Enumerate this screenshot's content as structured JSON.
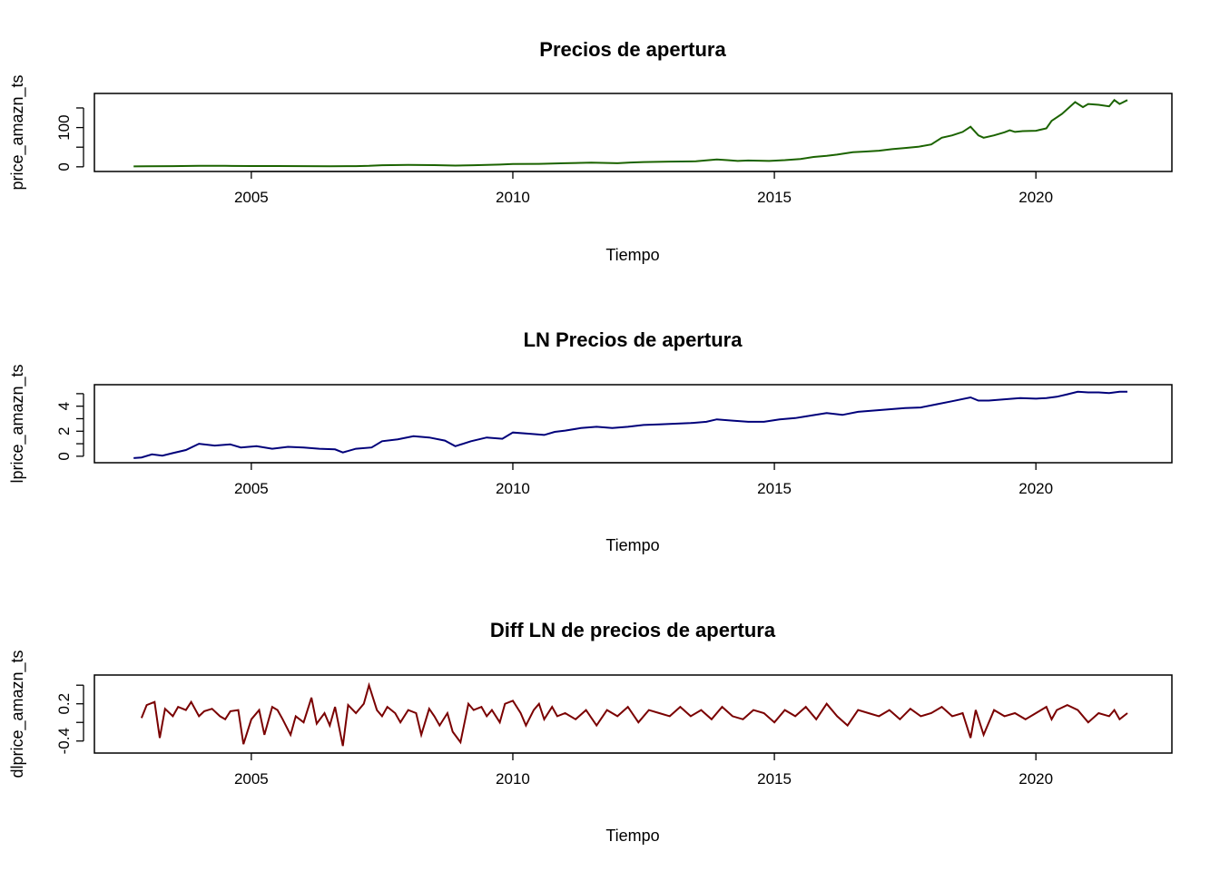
{
  "chart_data": [
    {
      "type": "line",
      "title": "Precios de apertura",
      "xlabel": "Tiempo",
      "ylabel": "price_amazn_ts",
      "xlim": [
        2002.0,
        2022.6
      ],
      "ylim": [
        -5,
        180
      ],
      "xticks": [
        2005,
        2010,
        2015,
        2020
      ],
      "yticks": [
        0,
        100
      ],
      "ytick_labels": [
        "0",
        "100"
      ],
      "ytick_positions": [
        0,
        50,
        100,
        150
      ],
      "color": "#1b6300",
      "series": [
        {
          "x": [
            2002.75,
            2003.0,
            2003.5,
            2004.0,
            2004.5,
            2005.0,
            2005.5,
            2006.0,
            2006.5,
            2007.0,
            2007.25,
            2007.5,
            2008.0,
            2008.5,
            2008.9,
            2009.25,
            2009.75,
            2010.0,
            2010.5,
            2011.0,
            2011.5,
            2012.0,
            2012.25,
            2012.5,
            2013.0,
            2013.5,
            2013.9,
            2014.1,
            2014.3,
            2014.5,
            2014.9,
            2015.2,
            2015.5,
            2015.75,
            2016.0,
            2016.2,
            2016.5,
            2016.75,
            2017.0,
            2017.25,
            2017.5,
            2017.75,
            2018.0,
            2018.2,
            2018.4,
            2018.6,
            2018.75,
            2018.9,
            2019.0,
            2019.2,
            2019.4,
            2019.5,
            2019.6,
            2019.75,
            2020.0,
            2020.2,
            2020.3,
            2020.5,
            2020.75,
            2020.9,
            2021.0,
            2021.2,
            2021.4,
            2021.5,
            2021.6,
            2021.75
          ],
          "y": [
            1,
            1.2,
            1.8,
            2.7,
            2.3,
            2.0,
            1.9,
            1.8,
            1.5,
            1.8,
            2.5,
            4.0,
            4.8,
            4.3,
            3.0,
            4.0,
            5.7,
            7.0,
            7.5,
            9.0,
            10.5,
            9.0,
            11,
            12,
            13.2,
            14,
            18.5,
            17,
            15,
            16,
            15,
            17,
            20,
            25,
            28,
            31,
            37,
            39,
            41,
            45,
            48,
            51,
            57,
            74,
            80,
            89,
            102,
            80,
            74,
            80,
            88,
            93,
            89,
            91,
            92,
            98,
            117,
            135,
            165,
            152,
            160,
            158,
            154,
            170,
            160,
            170
          ]
        }
      ]
    },
    {
      "type": "line",
      "title": "LN Precios de apertura",
      "xlabel": "Tiempo",
      "ylabel": "lprice_amazn_ts",
      "xlim": [
        2002.0,
        2022.6
      ],
      "ylim": [
        -0.3,
        5.5
      ],
      "xticks": [
        2005,
        2010,
        2015,
        2020
      ],
      "yticks": [
        0,
        2,
        4
      ],
      "ytick_labels": [
        "0",
        "2",
        "4"
      ],
      "ytick_positions": [
        0,
        1,
        2,
        3,
        4,
        5
      ],
      "color": "#00007a",
      "series": [
        {
          "x": [
            2002.75,
            2002.9,
            2003.1,
            2003.3,
            2003.5,
            2003.75,
            2004.0,
            2004.3,
            2004.6,
            2004.8,
            2005.1,
            2005.4,
            2005.7,
            2006.0,
            2006.3,
            2006.6,
            2006.75,
            2007.0,
            2007.3,
            2007.5,
            2007.8,
            2008.1,
            2008.4,
            2008.7,
            2008.9,
            2009.2,
            2009.5,
            2009.8,
            2010.0,
            2010.3,
            2010.6,
            2010.8,
            2011.0,
            2011.3,
            2011.6,
            2011.9,
            2012.2,
            2012.5,
            2012.8,
            2013.1,
            2013.4,
            2013.7,
            2013.9,
            2014.2,
            2014.5,
            2014.8,
            2015.1,
            2015.4,
            2015.7,
            2016.0,
            2016.3,
            2016.6,
            2016.9,
            2017.2,
            2017.5,
            2017.8,
            2018.1,
            2018.4,
            2018.75,
            2018.9,
            2019.1,
            2019.4,
            2019.7,
            2020.0,
            2020.2,
            2020.4,
            2020.6,
            2020.8,
            2021.0,
            2021.2,
            2021.4,
            2021.6,
            2021.75
          ],
          "y": [
            -0.15,
            -0.1,
            0.15,
            0.05,
            0.25,
            0.5,
            1.0,
            0.85,
            0.95,
            0.7,
            0.8,
            0.6,
            0.75,
            0.7,
            0.6,
            0.55,
            0.3,
            0.6,
            0.7,
            1.2,
            1.35,
            1.6,
            1.5,
            1.25,
            0.8,
            1.2,
            1.5,
            1.4,
            1.9,
            1.8,
            1.7,
            1.95,
            2.05,
            2.25,
            2.35,
            2.25,
            2.35,
            2.5,
            2.55,
            2.6,
            2.65,
            2.75,
            2.95,
            2.85,
            2.75,
            2.75,
            2.95,
            3.05,
            3.25,
            3.45,
            3.3,
            3.55,
            3.65,
            3.75,
            3.85,
            3.9,
            4.15,
            4.4,
            4.7,
            4.45,
            4.45,
            4.55,
            4.65,
            4.6,
            4.65,
            4.75,
            4.95,
            5.15,
            5.1,
            5.1,
            5.05,
            5.15,
            5.15
          ]
        }
      ]
    },
    {
      "type": "line",
      "title": "Diff LN de precios de apertura",
      "xlabel": "Tiempo",
      "ylabel": "dlprice_amazn_ts",
      "xlim": [
        2002.0,
        2022.6
      ],
      "ylim": [
        -0.55,
        0.62
      ],
      "xticks": [
        2005,
        2010,
        2015,
        2020
      ],
      "yticks": [
        -0.4,
        0.2
      ],
      "ytick_labels": [
        "-0.4",
        "0.2"
      ],
      "ytick_positions": [
        -0.4,
        -0.1,
        0.2,
        0.5
      ],
      "color": "#7a0000",
      "series": [
        {
          "x": [
            2002.9,
            2003.0,
            2003.15,
            2003.25,
            2003.35,
            2003.5,
            2003.6,
            2003.75,
            2003.85,
            2004.0,
            2004.1,
            2004.25,
            2004.4,
            2004.5,
            2004.6,
            2004.75,
            2004.85,
            2005.0,
            2005.15,
            2005.25,
            2005.4,
            2005.5,
            2005.6,
            2005.75,
            2005.85,
            2006.0,
            2006.15,
            2006.25,
            2006.4,
            2006.5,
            2006.6,
            2006.75,
            2006.85,
            2007.0,
            2007.15,
            2007.25,
            2007.4,
            2007.5,
            2007.6,
            2007.75,
            2007.85,
            2008.0,
            2008.15,
            2008.25,
            2008.4,
            2008.5,
            2008.6,
            2008.75,
            2008.85,
            2009.0,
            2009.15,
            2009.25,
            2009.4,
            2009.5,
            2009.6,
            2009.75,
            2009.85,
            2010.0,
            2010.15,
            2010.25,
            2010.4,
            2010.5,
            2010.6,
            2010.75,
            2010.85,
            2011.0,
            2011.2,
            2011.4,
            2011.6,
            2011.8,
            2012.0,
            2012.2,
            2012.4,
            2012.6,
            2012.8,
            2013.0,
            2013.2,
            2013.4,
            2013.6,
            2013.8,
            2014.0,
            2014.2,
            2014.4,
            2014.6,
            2014.8,
            2015.0,
            2015.2,
            2015.4,
            2015.6,
            2015.8,
            2016.0,
            2016.2,
            2016.4,
            2016.6,
            2016.8,
            2017.0,
            2017.2,
            2017.4,
            2017.6,
            2017.8,
            2018.0,
            2018.2,
            2018.4,
            2018.6,
            2018.75,
            2018.85,
            2019.0,
            2019.2,
            2019.4,
            2019.6,
            2019.8,
            2020.0,
            2020.2,
            2020.3,
            2020.4,
            2020.6,
            2020.8,
            2021.0,
            2021.2,
            2021.4,
            2021.5,
            2021.6,
            2021.75
          ],
          "y": [
            -0.03,
            0.18,
            0.23,
            -0.35,
            0.12,
            0.0,
            0.15,
            0.1,
            0.23,
            0.0,
            0.08,
            0.12,
            0.0,
            -0.05,
            0.08,
            0.1,
            -0.45,
            -0.05,
            0.1,
            -0.3,
            0.15,
            0.1,
            -0.05,
            -0.3,
            0.0,
            -0.1,
            0.3,
            -0.12,
            0.05,
            -0.15,
            0.15,
            -0.48,
            0.18,
            0.05,
            0.2,
            0.5,
            0.1,
            0.0,
            0.15,
            0.05,
            -0.1,
            0.1,
            0.05,
            -0.3,
            0.12,
            0.0,
            -0.15,
            0.05,
            -0.25,
            -0.42,
            0.2,
            0.1,
            0.15,
            0.0,
            0.1,
            -0.1,
            0.2,
            0.25,
            0.05,
            -0.15,
            0.1,
            0.2,
            -0.05,
            0.15,
            0.0,
            0.05,
            -0.05,
            0.1,
            -0.15,
            0.1,
            0.0,
            0.15,
            -0.1,
            0.1,
            0.05,
            0.0,
            0.15,
            0.0,
            0.1,
            -0.05,
            0.15,
            0.0,
            -0.05,
            0.1,
            0.05,
            -0.1,
            0.1,
            0.0,
            0.15,
            -0.05,
            0.2,
            0.0,
            -0.15,
            0.1,
            0.05,
            0.0,
            0.1,
            -0.05,
            0.12,
            0.0,
            0.05,
            0.15,
            0.0,
            0.05,
            -0.35,
            0.1,
            -0.3,
            0.1,
            0.0,
            0.05,
            -0.05,
            0.05,
            0.15,
            -0.05,
            0.1,
            0.18,
            0.1,
            -0.1,
            0.05,
            0.0,
            0.1,
            -0.05,
            0.05
          ]
        }
      ]
    }
  ]
}
